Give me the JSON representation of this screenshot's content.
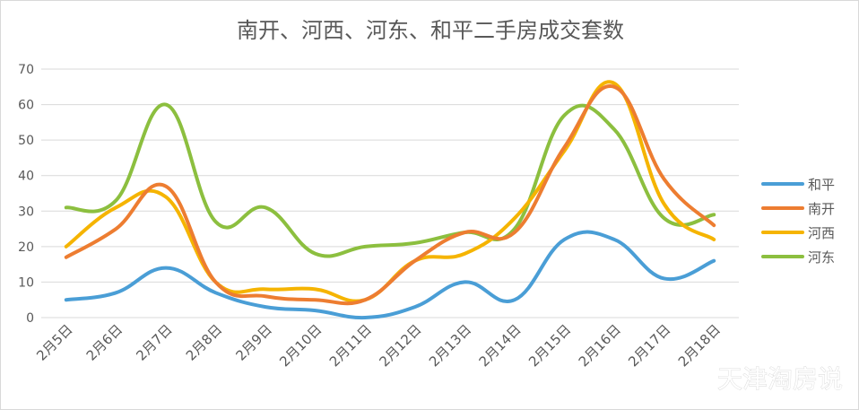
{
  "watermark": "天津淘房说",
  "chart_data": {
    "type": "line",
    "title": "南开、河西、河东、和平二手房成交套数",
    "categories": [
      "2月5日",
      "2月6日",
      "2月7日",
      "2月8日",
      "2月9日",
      "2月10日",
      "2月11日",
      "2月12日",
      "2月13日",
      "2月14日",
      "2月15日",
      "2月16日",
      "2月17日",
      "2月18日"
    ],
    "ylim": [
      0,
      70
    ],
    "yticks": [
      0,
      10,
      20,
      30,
      40,
      50,
      60,
      70
    ],
    "grid": true,
    "smooth": true,
    "legend_position": "right",
    "series": [
      {
        "name": "和平",
        "color": "#4a9ed6",
        "values": [
          5,
          7,
          14,
          7,
          3,
          2,
          0,
          3,
          10,
          5,
          22,
          22,
          11,
          16
        ]
      },
      {
        "name": "南开",
        "color": "#ed7d31",
        "values": [
          17,
          25,
          37,
          10,
          6,
          5,
          5,
          16,
          24,
          24,
          48,
          65,
          39,
          26
        ]
      },
      {
        "name": "河西",
        "color": "#f5b400",
        "values": [
          20,
          31,
          34,
          10,
          8,
          8,
          5,
          16,
          18,
          28,
          47,
          66,
          32,
          22
        ]
      },
      {
        "name": "河东",
        "color": "#8cbf3f",
        "values": [
          31,
          33,
          60,
          27,
          31,
          18,
          20,
          21,
          24,
          25,
          57,
          53,
          28,
          29
        ]
      }
    ]
  }
}
